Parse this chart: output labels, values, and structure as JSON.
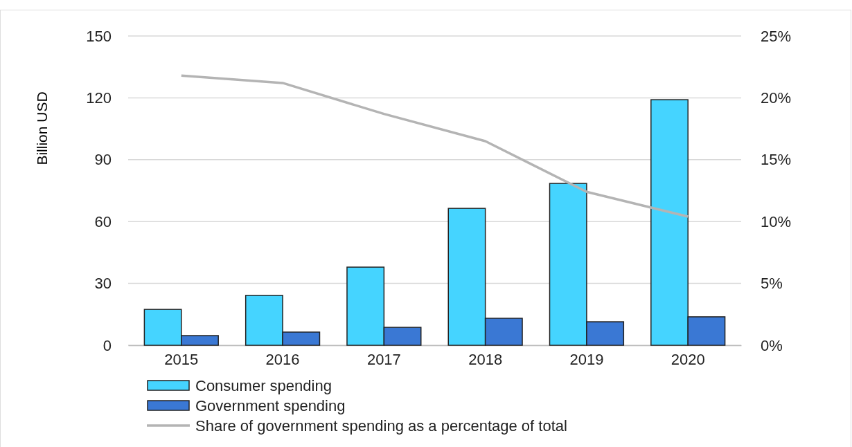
{
  "chart_data": {
    "type": "bar",
    "ylabel": "Billion USD",
    "categories": [
      "2015",
      "2016",
      "2017",
      "2018",
      "2019",
      "2020"
    ],
    "series": [
      {
        "name": "Consumer spending",
        "color": "#45d4ff",
        "values": [
          17.4,
          24.2,
          37.9,
          66.4,
          78.5,
          119.1
        ]
      },
      {
        "name": "Government spending",
        "color": "#3a78d4",
        "values": [
          4.7,
          6.4,
          8.7,
          13.1,
          11.4,
          13.8
        ]
      },
      {
        "name": "Share of government spending as a percentage of total",
        "type": "line",
        "axis": "y2",
        "color": "#b4b4b4",
        "values": [
          21.8,
          21.2,
          18.7,
          16.5,
          12.4,
          10.4
        ]
      }
    ],
    "ylim": [
      0,
      150
    ],
    "yticks": [
      0,
      30,
      60,
      90,
      120,
      150
    ],
    "y2lim": [
      0,
      25
    ],
    "y2ticks": [
      {
        "value": 0,
        "label": "0%"
      },
      {
        "value": 5,
        "label": "5%"
      },
      {
        "value": 10,
        "label": "10%"
      },
      {
        "value": 15,
        "label": "15%"
      },
      {
        "value": 20,
        "label": "20%"
      },
      {
        "value": 25,
        "label": "25%"
      }
    ],
    "grid": "y",
    "legend": "bottom",
    "marker": "none",
    "line_style": "solid"
  }
}
